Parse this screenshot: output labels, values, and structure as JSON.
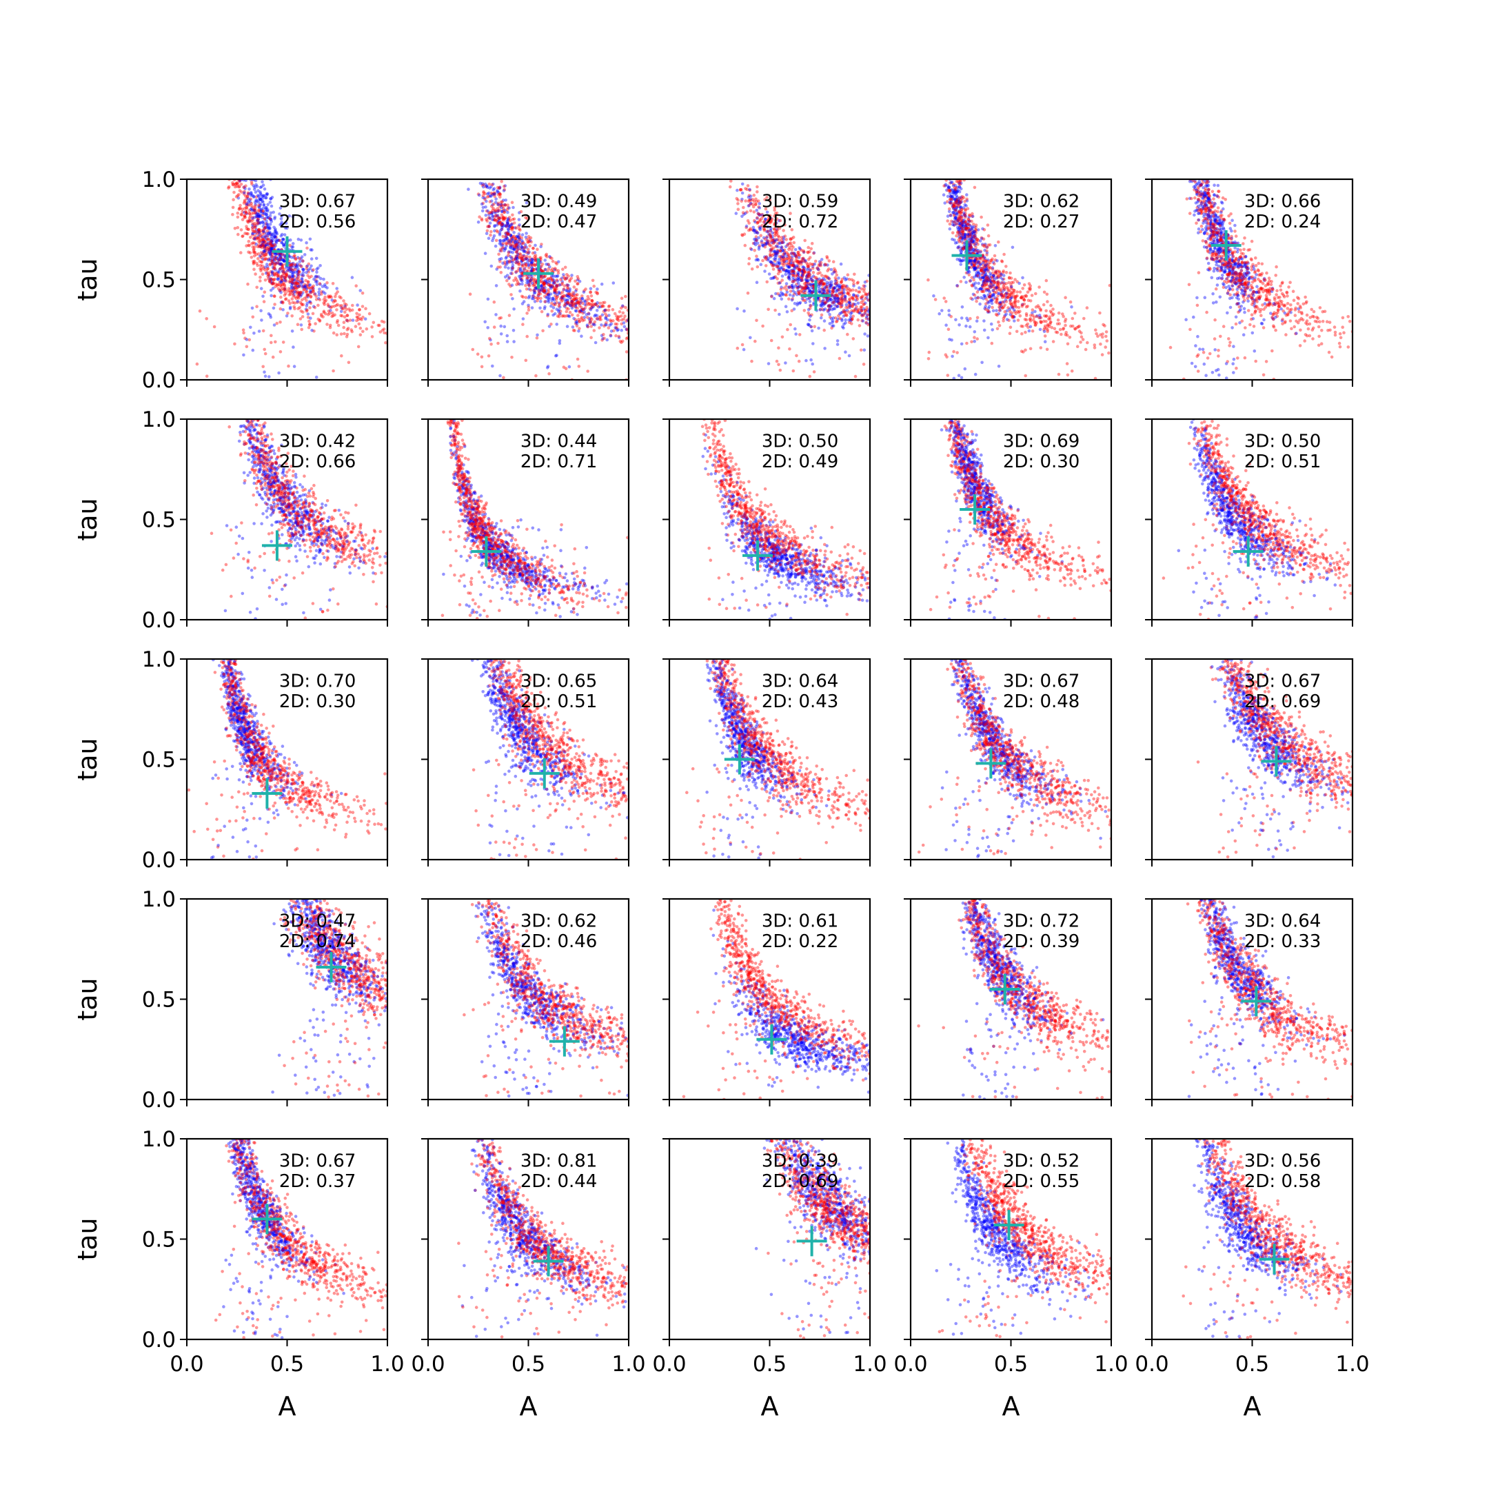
{
  "colors": {
    "series_3d": "#0000ff",
    "series_2d": "#ff0000",
    "marker": "#20b2aa",
    "axes": "#000000"
  },
  "chart_data": {
    "type": "scatter",
    "layout": "5x5 small multiples, shared axes",
    "xlabel": "A",
    "ylabel": "tau",
    "xlim": [
      0,
      1
    ],
    "ylim": [
      0,
      1
    ],
    "xticks": [
      "0.0",
      "0.5",
      "1.0"
    ],
    "yticks": [
      "0.0",
      "0.5",
      "1.0"
    ],
    "grid": false,
    "legend": "none",
    "series_style": [
      {
        "color": "blue",
        "marker": "small dots"
      },
      {
        "color": "red",
        "marker": "small dots"
      }
    ],
    "panels": [
      {
        "row": 0,
        "col": 0,
        "label_3d": "3D: 0.67",
        "label_2d": "2D: 0.56",
        "marker": [
          0.5,
          0.64
        ],
        "red": {
          "cx": 0.42,
          "cy": 0.6,
          "spread": 0.9
        },
        "blue": {
          "cx": 0.42,
          "cy": 0.72,
          "spread": 0.45
        }
      },
      {
        "row": 0,
        "col": 1,
        "label_3d": "3D: 0.49",
        "label_2d": "2D: 0.47",
        "marker": [
          0.55,
          0.53
        ],
        "red": {
          "cx": 0.55,
          "cy": 0.52,
          "spread": 0.9
        },
        "blue": {
          "cx": 0.48,
          "cy": 0.58,
          "spread": 0.7
        }
      },
      {
        "row": 0,
        "col": 2,
        "label_3d": "3D: 0.59",
        "label_2d": "2D: 0.72",
        "marker": [
          0.73,
          0.42
        ],
        "red": {
          "cx": 0.7,
          "cy": 0.5,
          "spread": 0.75
        },
        "blue": {
          "cx": 0.7,
          "cy": 0.47,
          "spread": 0.5
        }
      },
      {
        "row": 0,
        "col": 3,
        "label_3d": "3D: 0.62",
        "label_2d": "2D: 0.27",
        "marker": [
          0.28,
          0.62
        ],
        "red": {
          "cx": 0.35,
          "cy": 0.58,
          "spread": 1.1
        },
        "blue": {
          "cx": 0.28,
          "cy": 0.7,
          "spread": 0.55
        }
      },
      {
        "row": 0,
        "col": 4,
        "label_3d": "3D: 0.66",
        "label_2d": "2D: 0.24",
        "marker": [
          0.37,
          0.67
        ],
        "red": {
          "cx": 0.38,
          "cy": 0.62,
          "spread": 1.0
        },
        "blue": {
          "cx": 0.32,
          "cy": 0.72,
          "spread": 0.5
        }
      },
      {
        "row": 1,
        "col": 0,
        "label_3d": "3D: 0.42",
        "label_2d": "2D: 0.66",
        "marker": [
          0.45,
          0.37
        ],
        "red": {
          "cx": 0.52,
          "cy": 0.58,
          "spread": 0.9
        },
        "blue": {
          "cx": 0.45,
          "cy": 0.65,
          "spread": 0.6
        }
      },
      {
        "row": 1,
        "col": 1,
        "label_3d": "3D: 0.44",
        "label_2d": "2D: 0.71",
        "marker": [
          0.29,
          0.34
        ],
        "red": {
          "cx": 0.28,
          "cy": 0.42,
          "spread": 1.1
        },
        "blue": {
          "cx": 0.35,
          "cy": 0.32,
          "spread": 0.9
        }
      },
      {
        "row": 1,
        "col": 2,
        "label_3d": "3D: 0.50",
        "label_2d": "2D: 0.49",
        "marker": [
          0.44,
          0.32
        ],
        "red": {
          "cx": 0.45,
          "cy": 0.45,
          "spread": 1.1
        },
        "blue": {
          "cx": 0.55,
          "cy": 0.3,
          "spread": 0.6
        }
      },
      {
        "row": 1,
        "col": 3,
        "label_3d": "3D: 0.69",
        "label_2d": "2D: 0.30",
        "marker": [
          0.32,
          0.55
        ],
        "red": {
          "cx": 0.38,
          "cy": 0.55,
          "spread": 1.0
        },
        "blue": {
          "cx": 0.3,
          "cy": 0.72,
          "spread": 0.5
        }
      },
      {
        "row": 1,
        "col": 4,
        "label_3d": "3D: 0.50",
        "label_2d": "2D: 0.51",
        "marker": [
          0.48,
          0.34
        ],
        "red": {
          "cx": 0.48,
          "cy": 0.52,
          "spread": 0.95
        },
        "blue": {
          "cx": 0.4,
          "cy": 0.52,
          "spread": 0.6
        }
      },
      {
        "row": 2,
        "col": 0,
        "label_3d": "3D: 0.70",
        "label_2d": "2D: 0.30",
        "marker": [
          0.4,
          0.33
        ],
        "red": {
          "cx": 0.33,
          "cy": 0.58,
          "spread": 1.1
        },
        "blue": {
          "cx": 0.28,
          "cy": 0.68,
          "spread": 0.5
        }
      },
      {
        "row": 2,
        "col": 1,
        "label_3d": "3D: 0.65",
        "label_2d": "2D: 0.51",
        "marker": [
          0.58,
          0.43
        ],
        "red": {
          "cx": 0.55,
          "cy": 0.62,
          "spread": 0.8
        },
        "blue": {
          "cx": 0.45,
          "cy": 0.65,
          "spread": 0.5
        }
      },
      {
        "row": 2,
        "col": 2,
        "label_3d": "3D: 0.64",
        "label_2d": "2D: 0.43",
        "marker": [
          0.35,
          0.5
        ],
        "red": {
          "cx": 0.42,
          "cy": 0.6,
          "spread": 0.95
        },
        "blue": {
          "cx": 0.35,
          "cy": 0.62,
          "spread": 0.55
        }
      },
      {
        "row": 2,
        "col": 3,
        "label_3d": "3D: 0.67",
        "label_2d": "2D: 0.48",
        "marker": [
          0.4,
          0.48
        ],
        "red": {
          "cx": 0.45,
          "cy": 0.55,
          "spread": 1.0
        },
        "blue": {
          "cx": 0.4,
          "cy": 0.6,
          "spread": 0.6
        }
      },
      {
        "row": 2,
        "col": 4,
        "label_3d": "3D: 0.67",
        "label_2d": "2D: 0.69",
        "marker": [
          0.62,
          0.49
        ],
        "red": {
          "cx": 0.62,
          "cy": 0.62,
          "spread": 0.75
        },
        "blue": {
          "cx": 0.55,
          "cy": 0.62,
          "spread": 0.45
        }
      },
      {
        "row": 3,
        "col": 0,
        "label_3d": "3D: 0.47",
        "label_2d": "2D: 0.74",
        "marker": [
          0.72,
          0.66
        ],
        "red": {
          "cx": 0.8,
          "cy": 0.68,
          "spread": 0.55
        },
        "blue": {
          "cx": 0.7,
          "cy": 0.75,
          "spread": 0.35
        }
      },
      {
        "row": 3,
        "col": 1,
        "label_3d": "3D: 0.62",
        "label_2d": "2D: 0.46",
        "marker": [
          0.68,
          0.29
        ],
        "red": {
          "cx": 0.6,
          "cy": 0.48,
          "spread": 0.95
        },
        "blue": {
          "cx": 0.48,
          "cy": 0.55,
          "spread": 0.7
        }
      },
      {
        "row": 3,
        "col": 2,
        "label_3d": "3D: 0.61",
        "label_2d": "2D: 0.22",
        "marker": [
          0.51,
          0.3
        ],
        "red": {
          "cx": 0.5,
          "cy": 0.5,
          "spread": 1.0
        },
        "blue": {
          "cx": 0.62,
          "cy": 0.3,
          "spread": 0.6
        }
      },
      {
        "row": 3,
        "col": 3,
        "label_3d": "3D: 0.72",
        "label_2d": "2D: 0.39",
        "marker": [
          0.47,
          0.55
        ],
        "red": {
          "cx": 0.52,
          "cy": 0.55,
          "spread": 0.9
        },
        "blue": {
          "cx": 0.42,
          "cy": 0.7,
          "spread": 0.45
        }
      },
      {
        "row": 3,
        "col": 4,
        "label_3d": "3D: 0.64",
        "label_2d": "2D: 0.33",
        "marker": [
          0.52,
          0.49
        ],
        "red": {
          "cx": 0.5,
          "cy": 0.55,
          "spread": 1.0
        },
        "blue": {
          "cx": 0.4,
          "cy": 0.7,
          "spread": 0.5
        }
      },
      {
        "row": 4,
        "col": 0,
        "label_3d": "3D: 0.67",
        "label_2d": "2D: 0.37",
        "marker": [
          0.4,
          0.6
        ],
        "red": {
          "cx": 0.45,
          "cy": 0.55,
          "spread": 0.95
        },
        "blue": {
          "cx": 0.35,
          "cy": 0.68,
          "spread": 0.5
        }
      },
      {
        "row": 4,
        "col": 1,
        "label_3d": "3D: 0.81",
        "label_2d": "2D: 0.44",
        "marker": [
          0.6,
          0.39
        ],
        "red": {
          "cx": 0.55,
          "cy": 0.48,
          "spread": 0.9
        },
        "blue": {
          "cx": 0.45,
          "cy": 0.55,
          "spread": 0.6
        }
      },
      {
        "row": 4,
        "col": 2,
        "label_3d": "3D: 0.39",
        "label_2d": "2D: 0.69",
        "marker": [
          0.71,
          0.49
        ],
        "red": {
          "cx": 0.85,
          "cy": 0.62,
          "spread": 0.45
        },
        "blue": {
          "cx": 0.78,
          "cy": 0.7,
          "spread": 0.35
        }
      },
      {
        "row": 4,
        "col": 3,
        "label_3d": "3D: 0.52",
        "label_2d": "2D: 0.55",
        "marker": [
          0.49,
          0.57
        ],
        "red": {
          "cx": 0.55,
          "cy": 0.55,
          "spread": 0.85
        },
        "blue": {
          "cx": 0.4,
          "cy": 0.55,
          "spread": 0.6
        }
      },
      {
        "row": 4,
        "col": 4,
        "label_3d": "3D: 0.56",
        "label_2d": "2D: 0.58",
        "marker": [
          0.61,
          0.4
        ],
        "red": {
          "cx": 0.58,
          "cy": 0.52,
          "spread": 0.9
        },
        "blue": {
          "cx": 0.42,
          "cy": 0.6,
          "spread": 0.55
        }
      }
    ]
  }
}
